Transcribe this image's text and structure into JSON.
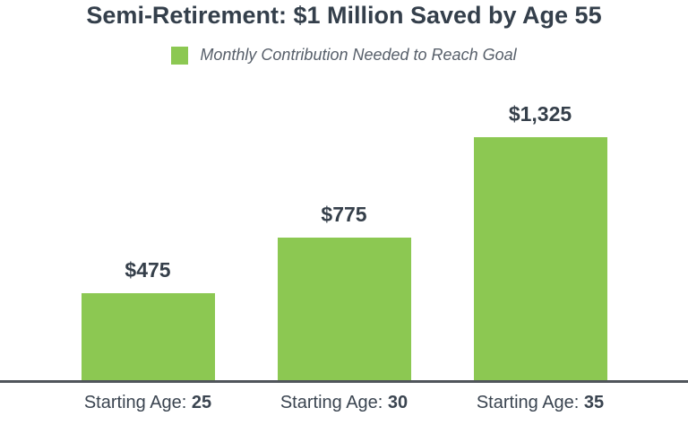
{
  "title": "Semi-Retirement: $1 Million Saved by Age 55",
  "legend": {
    "label": "Monthly Contribution Needed to Reach Goal"
  },
  "chart_data": {
    "type": "bar",
    "title": "Semi-Retirement: $1 Million Saved by Age 55",
    "series_name": "Monthly Contribution Needed to Reach Goal",
    "category_prefix": "Starting Age:",
    "ages": [
      "25",
      "30",
      "35"
    ],
    "categories": [
      "Starting Age: 25",
      "Starting Age: 30",
      "Starting Age: 35"
    ],
    "values": [
      475,
      775,
      1325
    ],
    "value_labels": [
      "$475",
      "$775",
      "$1,325"
    ],
    "ylim": [
      0,
      1325
    ],
    "grid": false,
    "legend_position": "top",
    "bar_color": "#8cc852"
  },
  "colors": {
    "background": "#ffffff",
    "title_text": "#343f4b",
    "value_text": "#353f4a",
    "axis_label_text": "#3a4450",
    "legend_text": "#575f6a",
    "bar": "#8cc852",
    "axis_line": "#50555b"
  }
}
